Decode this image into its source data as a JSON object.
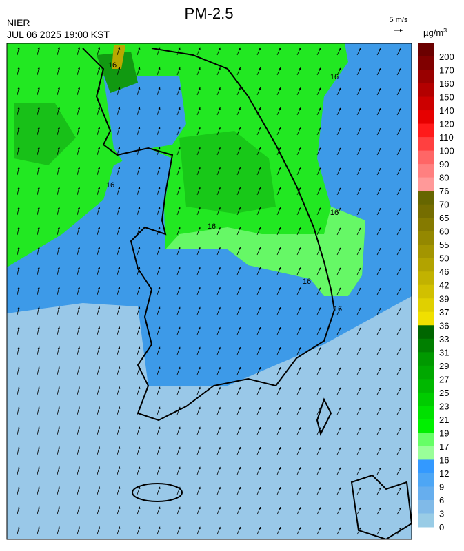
{
  "header": {
    "title": "PM-2.5",
    "agency": "NIER",
    "datetime": "JUL 06 2025 19:00 KST",
    "wind_scale": "5 m/s",
    "unit": "µg/m",
    "unit_power": "3"
  },
  "map": {
    "contour_labels": [
      "16",
      "16",
      "16",
      "16",
      "16",
      "16",
      "16"
    ]
  },
  "legend": {
    "levels": [
      {
        "label": 200,
        "color": "#6b0000"
      },
      {
        "label": 170,
        "color": "#800000"
      },
      {
        "label": 160,
        "color": "#990000"
      },
      {
        "label": 150,
        "color": "#b30000"
      },
      {
        "label": 140,
        "color": "#cc0000"
      },
      {
        "label": 120,
        "color": "#e60000"
      },
      {
        "label": 110,
        "color": "#ff1a1a"
      },
      {
        "label": 100,
        "color": "#ff4040"
      },
      {
        "label": 90,
        "color": "#ff6666"
      },
      {
        "label": 80,
        "color": "#ff8080"
      },
      {
        "label": 76,
        "color": "#ff9999"
      },
      {
        "label": 70,
        "color": "#666600"
      },
      {
        "label": 65,
        "color": "#756d00"
      },
      {
        "label": 60,
        "color": "#857a00"
      },
      {
        "label": 55,
        "color": "#948800"
      },
      {
        "label": 50,
        "color": "#a39500"
      },
      {
        "label": 46,
        "color": "#b2a300"
      },
      {
        "label": 42,
        "color": "#c2b200"
      },
      {
        "label": 39,
        "color": "#d1c000"
      },
      {
        "label": 37,
        "color": "#e0d000"
      },
      {
        "label": 36,
        "color": "#f0e000"
      },
      {
        "label": 33,
        "color": "#006600"
      },
      {
        "label": 31,
        "color": "#007f00"
      },
      {
        "label": 29,
        "color": "#009900"
      },
      {
        "label": 27,
        "color": "#00a800"
      },
      {
        "label": 25,
        "color": "#00b800"
      },
      {
        "label": 23,
        "color": "#00cc00"
      },
      {
        "label": 21,
        "color": "#00e000"
      },
      {
        "label": 19,
        "color": "#00f000"
      },
      {
        "label": 17,
        "color": "#66ff66"
      },
      {
        "label": 16,
        "color": "#99ff99"
      },
      {
        "label": 12,
        "color": "#3399ff"
      },
      {
        "label": 9,
        "color": "#4da6f5"
      },
      {
        "label": 6,
        "color": "#66aeee"
      },
      {
        "label": 3,
        "color": "#80bae8"
      },
      {
        "label": 0,
        "color": "#99cce6"
      }
    ]
  }
}
